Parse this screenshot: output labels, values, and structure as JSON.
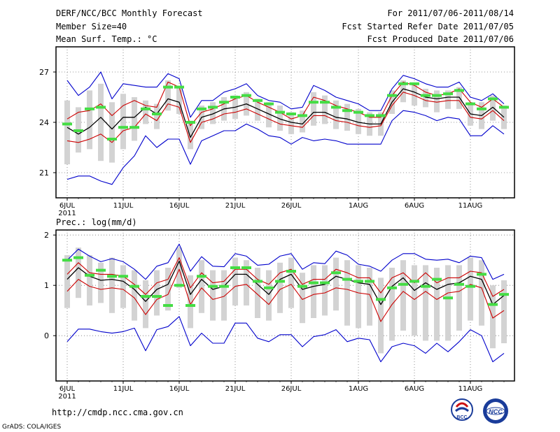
{
  "header": {
    "title": "DERF/NCC/BCC Monthly Forecast",
    "member_size": "Member Size=40",
    "variable_1": "Mean Surf. Temp.: °C",
    "forecast_period": "For 2011/07/06-2011/08/14",
    "start_refer_date": "Fcst Started Refer Date 2011/07/05",
    "produced_date": "Fcst Produced Date 2011/07/06"
  },
  "footer": {
    "url": "http://cmdp.ncc.cma.gov.cn",
    "grads_credit": "GrADS: COLA/IGES",
    "logo_left_text": "BCC",
    "logo_right_text": "NCC"
  },
  "colors": {
    "envelope": "#0000cc",
    "spread": "#cc0000",
    "mean": "#000000",
    "box": "#d3d3d3",
    "marker": "#44dd44"
  },
  "chart_data": [
    {
      "type": "line",
      "title": "Mean Surf. Temp.: °C",
      "x_label": "",
      "y_label": "",
      "x_day_range": [
        0,
        39
      ],
      "ylim": [
        19.5,
        28.5
      ],
      "yticks": [
        21,
        24,
        27
      ],
      "xtick_labels": [
        {
          "day": 0,
          "label": "6JUL",
          "sub": "2011"
        },
        {
          "day": 5,
          "label": "11JUL"
        },
        {
          "day": 10,
          "label": "16JUL"
        },
        {
          "day": 15,
          "label": "21JUL"
        },
        {
          "day": 20,
          "label": "26JUL"
        },
        {
          "day": 26,
          "label": "1AUG"
        },
        {
          "day": 31,
          "label": "6AUG"
        },
        {
          "day": 36,
          "label": "11AUG"
        }
      ],
      "series": [
        {
          "name": "max",
          "color": "#0000cc",
          "values": [
            26.5,
            25.6,
            26.1,
            27.0,
            25.4,
            26.3,
            26.2,
            26.1,
            26.1,
            26.9,
            26.6,
            24.3,
            25.3,
            25.3,
            25.8,
            26.0,
            26.3,
            25.6,
            25.3,
            25.2,
            24.8,
            24.9,
            26.2,
            25.9,
            25.5,
            25.3,
            25.1,
            24.7,
            24.7,
            26.0,
            26.8,
            26.6,
            26.3,
            26.1,
            26.1,
            26.4,
            25.5,
            25.3,
            25.7,
            25.1
          ]
        },
        {
          "name": "upper",
          "color": "#cc0000",
          "values": [
            24.2,
            24.6,
            24.7,
            25.1,
            24.4,
            25.0,
            25.3,
            25.0,
            24.9,
            26.4,
            26.1,
            23.8,
            24.6,
            24.8,
            25.1,
            25.4,
            25.6,
            25.2,
            24.9,
            24.6,
            24.2,
            24.4,
            25.5,
            25.3,
            25.0,
            24.8,
            24.6,
            24.3,
            24.3,
            25.6,
            26.4,
            26.2,
            25.8,
            25.6,
            25.7,
            26.0,
            25.2,
            24.9,
            25.4,
            24.9
          ]
        },
        {
          "name": "mean",
          "color": "#000000",
          "values": [
            23.7,
            23.3,
            23.7,
            24.3,
            23.6,
            24.3,
            24.3,
            24.9,
            24.5,
            25.4,
            25.2,
            23.1,
            24.3,
            24.5,
            24.8,
            24.9,
            25.1,
            24.8,
            24.5,
            24.2,
            24.0,
            23.9,
            24.6,
            24.6,
            24.3,
            24.2,
            24.0,
            23.9,
            23.9,
            25.2,
            26.0,
            25.8,
            25.5,
            25.4,
            25.5,
            25.5,
            24.5,
            24.4,
            24.9,
            24.3
          ]
        },
        {
          "name": "lower",
          "color": "#cc0000",
          "values": [
            22.9,
            22.8,
            23.0,
            23.3,
            22.8,
            23.5,
            23.7,
            24.5,
            24.1,
            25.1,
            24.9,
            22.8,
            24.0,
            24.2,
            24.5,
            24.6,
            24.8,
            24.5,
            24.2,
            23.9,
            23.8,
            23.7,
            24.4,
            24.4,
            24.1,
            24.0,
            23.8,
            23.7,
            23.8,
            25.0,
            25.8,
            25.6,
            25.3,
            25.2,
            25.3,
            25.3,
            24.3,
            24.2,
            24.7,
            24.1
          ]
        },
        {
          "name": "min",
          "color": "#0000cc",
          "values": [
            20.6,
            20.8,
            20.8,
            20.5,
            20.3,
            21.3,
            22.0,
            23.2,
            22.5,
            23.0,
            23.0,
            21.5,
            22.9,
            23.2,
            23.5,
            23.5,
            23.9,
            23.6,
            23.2,
            23.1,
            22.7,
            23.1,
            22.9,
            23.0,
            22.9,
            22.7,
            22.7,
            22.7,
            22.7,
            24.1,
            24.7,
            24.6,
            24.4,
            24.1,
            24.3,
            24.2,
            23.2,
            23.2,
            23.8,
            23.3
          ]
        },
        {
          "name": "box_high",
          "color": "#d3d3d3",
          "values": [
            25.3,
            24.9,
            25.9,
            26.3,
            25.2,
            25.7,
            25.5,
            25.3,
            25.1,
            26.5,
            26.1,
            24.1,
            25.0,
            25.2,
            25.5,
            25.6,
            25.8,
            25.4,
            25.2,
            25.0,
            24.6,
            24.7,
            25.8,
            25.6,
            25.3,
            25.1,
            24.8,
            24.6,
            24.6,
            25.9,
            26.5,
            26.3,
            26.0,
            25.9,
            25.9,
            26.1,
            25.2,
            25.2,
            25.6,
            25.0
          ]
        },
        {
          "name": "box_low",
          "color": "#d3d3d3",
          "values": [
            21.5,
            22.2,
            22.4,
            21.7,
            21.6,
            22.4,
            22.9,
            23.9,
            23.6,
            24.7,
            24.5,
            22.4,
            23.6,
            23.9,
            24.1,
            24.2,
            24.4,
            24.1,
            23.7,
            23.5,
            23.3,
            23.4,
            23.8,
            23.9,
            23.6,
            23.5,
            23.3,
            23.2,
            23.2,
            24.5,
            25.2,
            25.0,
            24.9,
            24.6,
            24.8,
            24.8,
            23.8,
            23.6,
            24.1,
            23.6
          ]
        },
        {
          "name": "marker",
          "color": "#44dd44",
          "values": [
            23.9,
            23.5,
            24.8,
            24.9,
            23.0,
            23.7,
            23.7,
            24.8,
            24.5,
            26.1,
            26.1,
            24.0,
            24.8,
            24.9,
            25.2,
            25.5,
            25.6,
            25.3,
            25.1,
            24.6,
            24.5,
            24.4,
            25.2,
            25.2,
            24.9,
            24.7,
            24.6,
            24.4,
            24.4,
            25.6,
            26.3,
            26.3,
            25.6,
            25.6,
            25.7,
            25.9,
            25.1,
            24.8,
            25.4,
            24.9
          ]
        }
      ]
    },
    {
      "type": "line",
      "title": "Prec.: log(mm/d)",
      "x_label": "",
      "y_label": "",
      "x_day_range": [
        0,
        39
      ],
      "ylim": [
        -0.9,
        2.1
      ],
      "yticks": [
        0,
        1,
        2
      ],
      "xtick_labels": [
        {
          "day": 0,
          "label": "6JUL",
          "sub": "2011"
        },
        {
          "day": 5,
          "label": "11JUL"
        },
        {
          "day": 10,
          "label": "16JUL"
        },
        {
          "day": 15,
          "label": "21JUL"
        },
        {
          "day": 20,
          "label": "26JUL"
        },
        {
          "day": 26,
          "label": "1AUG"
        },
        {
          "day": 31,
          "label": "6AUG"
        },
        {
          "day": 36,
          "label": "11AUG"
        }
      ],
      "series": [
        {
          "name": "max",
          "color": "#0000cc",
          "values": [
            1.5,
            1.72,
            1.58,
            1.47,
            1.53,
            1.47,
            1.32,
            1.12,
            1.38,
            1.45,
            1.82,
            1.28,
            1.57,
            1.38,
            1.37,
            1.63,
            1.58,
            1.4,
            1.42,
            1.58,
            1.63,
            1.32,
            1.45,
            1.43,
            1.68,
            1.6,
            1.42,
            1.38,
            1.28,
            1.5,
            1.63,
            1.63,
            1.52,
            1.5,
            1.52,
            1.45,
            1.58,
            1.55,
            1.12,
            1.22
          ]
        },
        {
          "name": "upper",
          "color": "#cc0000",
          "values": [
            1.22,
            1.45,
            1.25,
            1.22,
            1.22,
            1.18,
            1.02,
            0.82,
            1.05,
            1.12,
            1.55,
            0.95,
            1.25,
            1.05,
            1.08,
            1.32,
            1.32,
            1.12,
            1.02,
            1.25,
            1.32,
            1.02,
            1.12,
            1.12,
            1.32,
            1.25,
            1.15,
            1.15,
            0.85,
            1.15,
            1.25,
            1.05,
            1.25,
            1.05,
            1.15,
            1.15,
            1.28,
            1.25,
            0.78,
            0.92
          ]
        },
        {
          "name": "mean",
          "color": "#000000",
          "values": [
            1.12,
            1.35,
            1.18,
            1.1,
            1.12,
            1.08,
            0.92,
            0.68,
            0.92,
            1.02,
            1.48,
            0.82,
            1.12,
            0.92,
            0.98,
            1.22,
            1.22,
            1.02,
            0.82,
            1.12,
            1.22,
            0.92,
            0.98,
            1.02,
            1.18,
            1.12,
            1.05,
            1.02,
            0.62,
            0.98,
            1.15,
            0.9,
            1.05,
            0.92,
            1.02,
            1.05,
            1.18,
            1.12,
            0.62,
            0.8
          ]
        },
        {
          "name": "lower",
          "color": "#cc0000",
          "values": [
            0.88,
            1.12,
            0.98,
            0.92,
            0.95,
            0.92,
            0.75,
            0.42,
            0.72,
            0.82,
            1.32,
            0.62,
            0.95,
            0.72,
            0.78,
            0.98,
            1.02,
            0.82,
            0.62,
            0.92,
            1.02,
            0.72,
            0.82,
            0.85,
            0.95,
            0.92,
            0.85,
            0.82,
            0.28,
            0.62,
            0.88,
            0.72,
            0.88,
            0.72,
            0.85,
            0.88,
            1.02,
            0.95,
            0.35,
            0.5
          ]
        },
        {
          "name": "min",
          "color": "#0000cc",
          "values": [
            -0.12,
            0.13,
            0.13,
            0.08,
            0.05,
            0.08,
            0.15,
            -0.3,
            0.12,
            0.18,
            0.38,
            -0.2,
            0.05,
            -0.15,
            -0.15,
            0.25,
            0.25,
            -0.05,
            -0.12,
            0.02,
            0.02,
            -0.22,
            -0.02,
            0.02,
            0.12,
            -0.12,
            -0.05,
            -0.08,
            -0.52,
            -0.22,
            -0.15,
            -0.2,
            -0.35,
            -0.15,
            -0.32,
            -0.12,
            0.12,
            0.0,
            -0.52,
            -0.35
          ]
        },
        {
          "name": "box_high",
          "color": "#d3d3d3",
          "values": [
            1.6,
            1.75,
            1.6,
            1.45,
            1.55,
            1.4,
            1.3,
            1.1,
            1.3,
            1.35,
            1.75,
            1.2,
            1.5,
            1.3,
            1.3,
            1.55,
            1.5,
            1.35,
            1.3,
            1.45,
            1.55,
            1.25,
            1.4,
            1.4,
            1.55,
            1.5,
            1.4,
            1.35,
            1.15,
            1.35,
            1.5,
            1.4,
            1.4,
            1.35,
            1.4,
            1.4,
            1.55,
            1.5,
            1.0,
            1.1
          ]
        },
        {
          "name": "box_low",
          "color": "#d3d3d3",
          "values": [
            0.55,
            0.75,
            0.6,
            0.65,
            0.45,
            0.55,
            0.3,
            0.15,
            0.4,
            0.5,
            0.95,
            0.15,
            0.45,
            0.3,
            0.3,
            0.6,
            0.6,
            0.35,
            0.3,
            0.45,
            0.55,
            0.25,
            0.35,
            0.4,
            0.5,
            0.2,
            0.15,
            0.2,
            -0.35,
            -0.1,
            0.1,
            0.0,
            -0.1,
            -0.1,
            -0.1,
            0.1,
            0.3,
            0.2,
            -0.25,
            -0.15
          ]
        },
        {
          "name": "marker",
          "color": "#44dd44",
          "values": [
            1.5,
            1.55,
            1.2,
            1.3,
            1.18,
            1.18,
            0.98,
            0.78,
            0.78,
            0.6,
            1.0,
            0.6,
            1.18,
            0.98,
            0.98,
            1.35,
            1.35,
            1.08,
            0.95,
            1.08,
            1.28,
            0.98,
            1.05,
            1.05,
            1.25,
            1.12,
            1.08,
            1.08,
            0.72,
            0.95,
            1.02,
            1.08,
            0.98,
            1.12,
            0.75,
            1.02,
            0.98,
            1.22,
            0.62,
            0.82
          ]
        }
      ]
    }
  ]
}
